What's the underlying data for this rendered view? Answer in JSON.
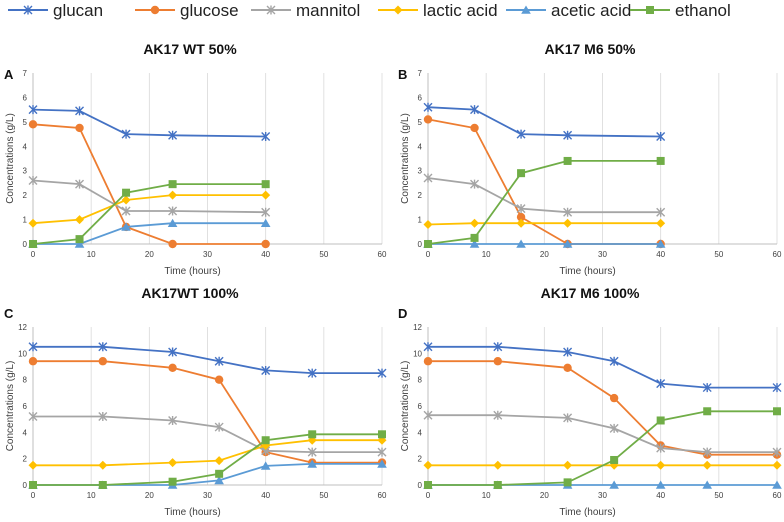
{
  "legend": [
    {
      "name": "glucan",
      "color": "#4472C4",
      "marker": "star"
    },
    {
      "name": "glucose",
      "color": "#ED7D31",
      "marker": "circle"
    },
    {
      "name": "mannitol",
      "color": "#A5A5A5",
      "marker": "star"
    },
    {
      "name": "lactic acid",
      "color": "#FFC000",
      "marker": "diamond"
    },
    {
      "name": "acetic acid",
      "color": "#5B9BD5",
      "marker": "triangle"
    },
    {
      "name": "ethanol",
      "color": "#70AD47",
      "marker": "square"
    }
  ],
  "chart_data": [
    {
      "type": "line",
      "panel": "A",
      "title": "AK17 WT 50%",
      "xlabel": "Time (hours)",
      "ylabel": "Concentrations (g/L)",
      "xlim": [
        0,
        60
      ],
      "ylim": [
        0,
        7
      ],
      "xticks": [
        0,
        10,
        20,
        30,
        40,
        50,
        60
      ],
      "yticks": [
        0,
        1,
        2,
        3,
        4,
        5,
        6,
        7
      ],
      "x": [
        0,
        8,
        16,
        24,
        40
      ],
      "series": [
        {
          "name": "glucan",
          "values": [
            5.5,
            5.45,
            4.5,
            4.45,
            4.4
          ]
        },
        {
          "name": "glucose",
          "values": [
            4.9,
            4.75,
            0.7,
            0.0,
            0.0
          ]
        },
        {
          "name": "mannitol",
          "values": [
            2.6,
            2.45,
            1.35,
            1.35,
            1.3
          ]
        },
        {
          "name": "lactic acid",
          "values": [
            0.85,
            1.0,
            1.8,
            2.0,
            2.0
          ]
        },
        {
          "name": "acetic acid",
          "values": [
            0.0,
            0.0,
            0.7,
            0.85,
            0.85
          ]
        },
        {
          "name": "ethanol",
          "values": [
            0.0,
            0.2,
            2.1,
            2.45,
            2.45
          ]
        }
      ]
    },
    {
      "type": "line",
      "panel": "B",
      "title": "AK17 M6 50%",
      "xlabel": "Time (hours)",
      "ylabel": "Concentrations (g/L)",
      "xlim": [
        0,
        60
      ],
      "ylim": [
        0,
        7
      ],
      "xticks": [
        0,
        10,
        20,
        30,
        40,
        50,
        60
      ],
      "yticks": [
        0,
        1,
        2,
        3,
        4,
        5,
        6,
        7
      ],
      "x": [
        0,
        8,
        16,
        24,
        40
      ],
      "series": [
        {
          "name": "glucan",
          "values": [
            5.6,
            5.5,
            4.5,
            4.45,
            4.4
          ]
        },
        {
          "name": "glucose",
          "values": [
            5.1,
            4.75,
            1.1,
            0.0,
            0.0
          ]
        },
        {
          "name": "mannitol",
          "values": [
            2.7,
            2.45,
            1.45,
            1.3,
            1.3
          ]
        },
        {
          "name": "lactic acid",
          "values": [
            0.8,
            0.85,
            0.85,
            0.85,
            0.85
          ]
        },
        {
          "name": "acetic acid",
          "values": [
            0.0,
            0.0,
            0.0,
            0.0,
            0.0
          ]
        },
        {
          "name": "ethanol",
          "values": [
            0.0,
            0.25,
            2.9,
            3.4,
            3.4
          ]
        }
      ]
    },
    {
      "type": "line",
      "panel": "C",
      "title": "AK17WT 100%",
      "xlabel": "Time (hours)",
      "ylabel": "Concentrations (g/L)",
      "xlim": [
        0,
        60
      ],
      "ylim": [
        0,
        12
      ],
      "xticks": [
        0,
        10,
        20,
        30,
        40,
        50,
        60
      ],
      "yticks": [
        0,
        2,
        4,
        6,
        8,
        10,
        12
      ],
      "x": [
        0,
        12,
        24,
        32,
        40,
        48,
        60
      ],
      "series": [
        {
          "name": "glucan",
          "values": [
            10.5,
            10.5,
            10.1,
            9.4,
            8.7,
            8.5,
            8.5
          ]
        },
        {
          "name": "glucose",
          "values": [
            9.4,
            9.4,
            8.9,
            8.0,
            2.5,
            1.7,
            1.7
          ]
        },
        {
          "name": "mannitol",
          "values": [
            5.2,
            5.2,
            4.9,
            4.4,
            2.6,
            2.5,
            2.5
          ]
        },
        {
          "name": "lactic acid",
          "values": [
            1.5,
            1.5,
            1.7,
            1.85,
            3.0,
            3.4,
            3.4
          ]
        },
        {
          "name": "acetic acid",
          "values": [
            0.0,
            0.0,
            0.0,
            0.35,
            1.45,
            1.6,
            1.6
          ]
        },
        {
          "name": "ethanol",
          "values": [
            0.0,
            0.0,
            0.25,
            0.85,
            3.4,
            3.85,
            3.85
          ]
        }
      ]
    },
    {
      "type": "line",
      "panel": "D",
      "title": "AK17 M6 100%",
      "xlabel": "Time (hours)",
      "ylabel": "Concentrations (g/L)",
      "xlim": [
        0,
        60
      ],
      "ylim": [
        0,
        12
      ],
      "xticks": [
        0,
        10,
        20,
        30,
        40,
        50,
        60
      ],
      "yticks": [
        0,
        2,
        4,
        6,
        8,
        10,
        12
      ],
      "x": [
        0,
        12,
        24,
        32,
        40,
        48,
        60
      ],
      "series": [
        {
          "name": "glucan",
          "values": [
            10.5,
            10.5,
            10.1,
            9.4,
            7.7,
            7.4,
            7.4
          ]
        },
        {
          "name": "glucose",
          "values": [
            9.4,
            9.4,
            8.9,
            6.6,
            3.0,
            2.3,
            2.3
          ]
        },
        {
          "name": "mannitol",
          "values": [
            5.3,
            5.3,
            5.1,
            4.3,
            2.8,
            2.5,
            2.5
          ]
        },
        {
          "name": "lactic acid",
          "values": [
            1.5,
            1.5,
            1.5,
            1.5,
            1.5,
            1.5,
            1.5
          ]
        },
        {
          "name": "acetic acid",
          "values": [
            0.0,
            0.0,
            0.0,
            0.0,
            0.0,
            0.0,
            0.0
          ]
        },
        {
          "name": "ethanol",
          "values": [
            0.0,
            0.0,
            0.2,
            1.9,
            4.9,
            5.6,
            5.6
          ]
        }
      ]
    }
  ]
}
